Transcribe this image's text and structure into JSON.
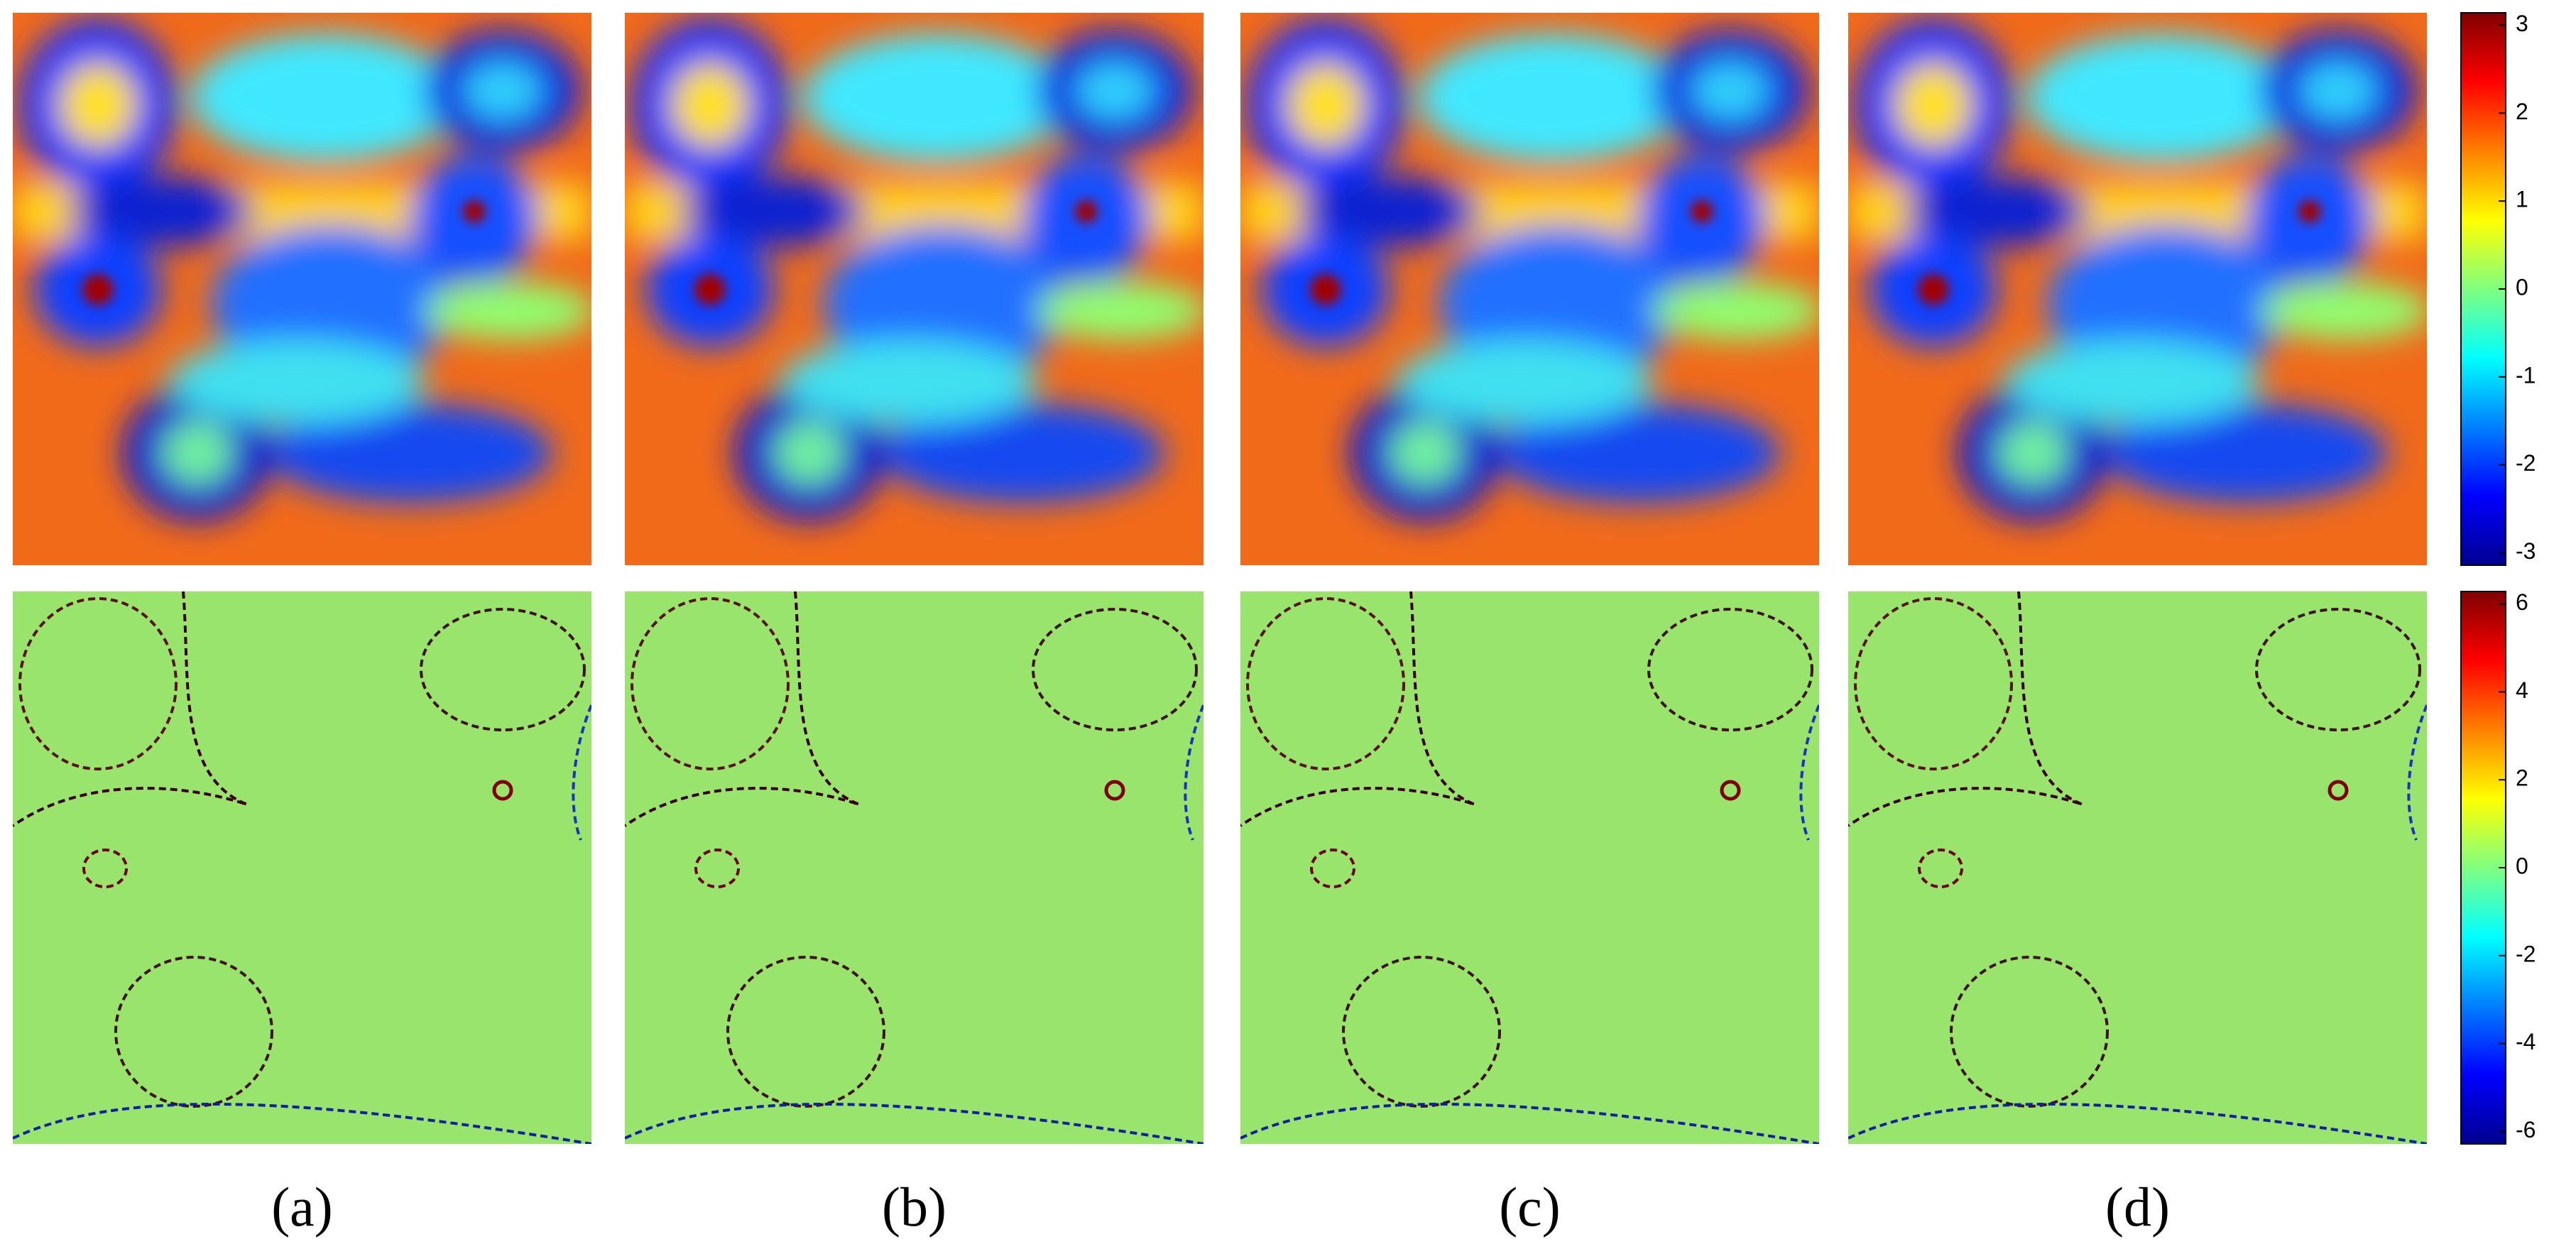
{
  "panels": [
    {
      "label": "(a)"
    },
    {
      "label": "(b)"
    },
    {
      "label": "(c)"
    },
    {
      "label": "(d)"
    }
  ],
  "colorbars": [
    {
      "lim": [
        -3.1416,
        3.1416
      ],
      "ticks": [
        -3,
        -2,
        -1,
        0,
        1,
        2,
        3
      ]
    },
    {
      "lim": [
        -6.2832,
        6.2832
      ],
      "ticks": [
        -6,
        -4,
        -2,
        0,
        2,
        4,
        6
      ]
    }
  ]
}
